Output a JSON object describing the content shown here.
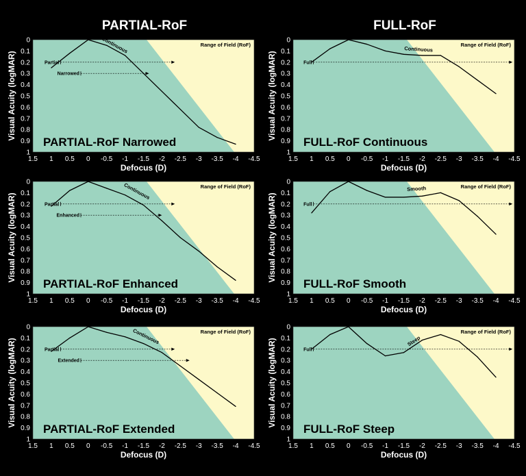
{
  "columns": [
    "PARTIAL-RoF",
    "FULL-RoF"
  ],
  "colors": {
    "background": "#000000",
    "cream": "#fdf9c9",
    "band1": "#e2ebc8",
    "band2": "#c6e2c9",
    "band3": "#aedbc4",
    "base": "#9dd4c0",
    "curve": "#000000"
  },
  "chart_data": [
    {
      "type": "line",
      "title": "PARTIAL-RoF Narrowed",
      "curve_label": "Continuous",
      "xlabel": "Defocus (D)",
      "ylabel": "Visual Acuity (logMAR)",
      "range_label": "Range of Field (RoF)",
      "xlim": [
        1.5,
        -4.5
      ],
      "ylim": [
        0,
        1
      ],
      "x": [
        1,
        0.5,
        0,
        -0.5,
        -1,
        -1.5,
        -2,
        -2.5,
        -3,
        -3.5,
        -4
      ],
      "y": [
        0.25,
        0.12,
        0.0,
        0.05,
        0.14,
        0.3,
        0.46,
        0.62,
        0.78,
        0.87,
        0.93
      ],
      "curve_label_pos": [
        -0.7,
        0.06
      ],
      "ranges": [
        {
          "label": "Partial",
          "y": 0.2,
          "start": 0.75,
          "end": -2.35
        },
        {
          "label": "Narrowed",
          "y": 0.3,
          "start": 0.2,
          "end": -1.65
        }
      ]
    },
    {
      "type": "line",
      "title": "FULL-RoF Continuous",
      "curve_label": "Continuous",
      "xlabel": "Defocus (D)",
      "ylabel": "Visual Acuity (logMAR)",
      "range_label": "Range of Field (RoF)",
      "xlim": [
        1.5,
        -4.5
      ],
      "ylim": [
        0,
        1
      ],
      "x": [
        1,
        0.5,
        0,
        -0.5,
        -1,
        -1.5,
        -2,
        -2.5,
        -3,
        -3.5,
        -4
      ],
      "y": [
        0.2,
        0.08,
        0.0,
        0.04,
        0.1,
        0.13,
        0.14,
        0.14,
        0.24,
        0.36,
        0.48
      ],
      "curve_label_pos": [
        -1.9,
        0.1
      ],
      "ranges": [
        {
          "label": "Full",
          "y": 0.2,
          "start": 0.95,
          "end": -4.45
        }
      ]
    },
    {
      "type": "line",
      "title": "PARTIAL-RoF Enhanced",
      "curve_label": "Continuous",
      "xlabel": "Defocus (D)",
      "ylabel": "Visual Acuity (logMAR)",
      "range_label": "Range of Field (RoF)",
      "xlim": [
        1.5,
        -4.5
      ],
      "ylim": [
        0,
        1
      ],
      "x": [
        1,
        0.5,
        0,
        -0.5,
        -1,
        -1.5,
        -2,
        -2.5,
        -3,
        -3.5,
        -4
      ],
      "y": [
        0.22,
        0.08,
        0.0,
        0.06,
        0.12,
        0.21,
        0.35,
        0.5,
        0.62,
        0.76,
        0.88
      ],
      "curve_label_pos": [
        -1.3,
        0.1
      ],
      "ranges": [
        {
          "label": "Partial",
          "y": 0.2,
          "start": 0.75,
          "end": -2.35
        },
        {
          "label": "Enhanced",
          "y": 0.3,
          "start": 0.2,
          "end": -2.0
        }
      ]
    },
    {
      "type": "line",
      "title": "FULL-RoF Smooth",
      "curve_label": "Smooth",
      "xlabel": "Defocus (D)",
      "ylabel": "Visual Acuity (logMAR)",
      "range_label": "Range of Field (RoF)",
      "xlim": [
        1.5,
        -4.5
      ],
      "ylim": [
        0,
        1
      ],
      "x": [
        1,
        0.5,
        0,
        -0.5,
        -1,
        -1.5,
        -2,
        -2.5,
        -3,
        -3.5,
        -4
      ],
      "y": [
        0.28,
        0.09,
        0.0,
        0.08,
        0.14,
        0.14,
        0.13,
        0.1,
        0.17,
        0.31,
        0.47
      ],
      "curve_label_pos": [
        -1.85,
        0.08
      ],
      "ranges": [
        {
          "label": "Full",
          "y": 0.2,
          "start": 0.95,
          "end": -4.45
        }
      ]
    },
    {
      "type": "line",
      "title": "PARTIAL-RoF Extended",
      "curve_label": "Continuous",
      "xlabel": "Defocus (D)",
      "ylabel": "Visual Acuity (logMAR)",
      "range_label": "Range of Field (RoF)",
      "xlim": [
        1.5,
        -4.5
      ],
      "ylim": [
        0,
        1
      ],
      "x": [
        1,
        0.5,
        0,
        -0.5,
        -1,
        -1.5,
        -2,
        -2.5,
        -3,
        -3.5,
        -4
      ],
      "y": [
        0.22,
        0.1,
        0.0,
        0.05,
        0.09,
        0.15,
        0.23,
        0.35,
        0.47,
        0.59,
        0.71
      ],
      "curve_label_pos": [
        -1.55,
        0.1
      ],
      "ranges": [
        {
          "label": "Partial",
          "y": 0.2,
          "start": 0.75,
          "end": -2.35
        },
        {
          "label": "Extended",
          "y": 0.3,
          "start": 0.2,
          "end": -2.75
        }
      ]
    },
    {
      "type": "line",
      "title": "FULL-RoF Steep",
      "curve_label": "Steep",
      "xlabel": "Defocus (D)",
      "ylabel": "Visual Acuity (logMAR)",
      "range_label": "Range of Field (RoF)",
      "xlim": [
        1.5,
        -4.5
      ],
      "ylim": [
        0,
        1
      ],
      "x": [
        1,
        0.5,
        0,
        -0.5,
        -1,
        -1.5,
        -2,
        -2.5,
        -3,
        -3.5,
        -4
      ],
      "y": [
        0.2,
        0.07,
        0.0,
        0.15,
        0.26,
        0.23,
        0.12,
        0.07,
        0.13,
        0.27,
        0.45
      ],
      "curve_label_pos": [
        -1.8,
        0.14
      ],
      "ranges": [
        {
          "label": "Full",
          "y": 0.2,
          "start": 0.95,
          "end": -4.45
        }
      ]
    }
  ],
  "xticks": [
    "1.5",
    "1",
    "0.5",
    "0",
    "-0.5",
    "-1",
    "-1.5",
    "-2",
    "-2.5",
    "-3",
    "-3.5",
    "-4",
    "-4.5"
  ],
  "yticks": [
    "0",
    "0.1",
    "0.2",
    "0.3",
    "0.4",
    "0.5",
    "0.6",
    "0.7",
    "0.8",
    "0.9",
    "1"
  ]
}
